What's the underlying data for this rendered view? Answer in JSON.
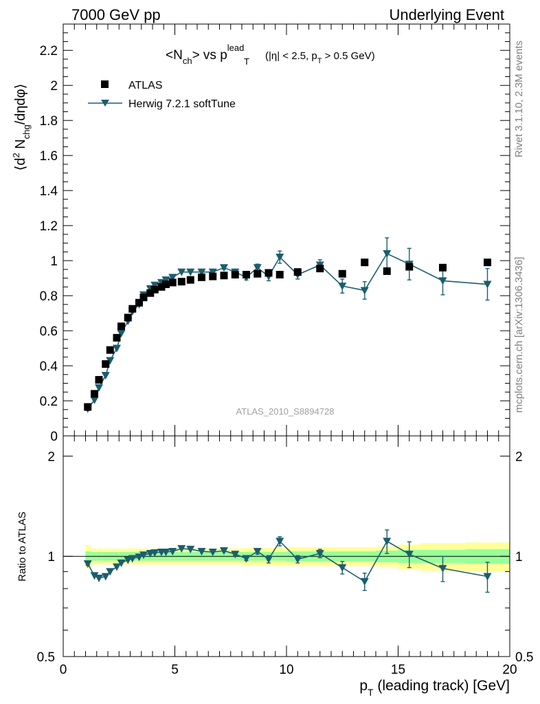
{
  "header": {
    "left": "7000 GeV pp",
    "right": "Underlying Event"
  },
  "side_labels": {
    "rivet": "Rivet 3.1.10,  2.3M events",
    "mcplots": "mcplots.cern.ch [arXiv:1306.3436]"
  },
  "colors": {
    "herwig": "#1b5e6e",
    "band_yellow": "#ffff99",
    "band_green": "#99ff99",
    "data": "#000000",
    "watermark": "#a0a0a0"
  },
  "chart_data": [
    {
      "type": "scatter",
      "panel": "main",
      "title_parts": {
        "n": "<N",
        "n_sub": "ch",
        "vs": "> vs p",
        "lead_sup": "lead",
        "t_sub": "T",
        "cut1": "(|η| < 2.5, p",
        "cut_sub": "T",
        "cut2": " > 0.5 GeV)"
      },
      "ylabel_parts": {
        "a": "⟨d",
        "sup2": "2",
        "b": " N",
        "sub_chg": "chg",
        "c": "/dηdφ⟩"
      },
      "watermark": "ATLAS_2010_S8894728",
      "xlim": [
        0,
        20
      ],
      "ylim": [
        0,
        2.35
      ],
      "x_ticks": [
        0,
        5,
        10,
        15,
        20
      ],
      "y_ticks": [
        "0",
        "0.2",
        "0.4",
        "0.6",
        "0.8",
        "1",
        "1.2",
        "1.4",
        "1.6",
        "1.8",
        "2",
        "2.2"
      ],
      "grid": false,
      "legend_position": "top-left",
      "series": [
        {
          "name": "ATLAS",
          "marker": "square",
          "x": [
            1.1,
            1.4,
            1.6,
            1.9,
            2.1,
            2.4,
            2.6,
            2.9,
            3.1,
            3.4,
            3.6,
            3.9,
            4.1,
            4.4,
            4.6,
            4.9,
            5.3,
            5.7,
            6.2,
            6.7,
            7.2,
            7.7,
            8.2,
            8.7,
            9.2,
            9.7,
            10.5,
            11.5,
            12.5,
            13.5,
            14.5,
            15.5,
            17.0,
            19.0
          ],
          "y": [
            0.165,
            0.24,
            0.32,
            0.41,
            0.49,
            0.56,
            0.625,
            0.675,
            0.725,
            0.76,
            0.79,
            0.815,
            0.835,
            0.85,
            0.865,
            0.875,
            0.88,
            0.89,
            0.905,
            0.91,
            0.915,
            0.92,
            0.92,
            0.925,
            0.93,
            0.92,
            0.935,
            0.955,
            0.925,
            0.99,
            0.94,
            0.965,
            0.96,
            0.99
          ]
        },
        {
          "name": "Herwig 7.2.1 softTune",
          "marker": "triangle-down",
          "x": [
            1.1,
            1.4,
            1.6,
            1.9,
            2.1,
            2.4,
            2.6,
            2.9,
            3.1,
            3.4,
            3.6,
            3.9,
            4.1,
            4.4,
            4.6,
            4.9,
            5.3,
            5.7,
            6.2,
            6.7,
            7.2,
            7.7,
            8.2,
            8.7,
            9.2,
            9.7,
            10.5,
            11.5,
            12.5,
            13.5,
            14.5,
            15.5,
            17.0,
            19.0
          ],
          "y": [
            0.155,
            0.205,
            0.275,
            0.345,
            0.43,
            0.5,
            0.585,
            0.655,
            0.71,
            0.75,
            0.805,
            0.84,
            0.86,
            0.875,
            0.89,
            0.905,
            0.935,
            0.935,
            0.935,
            0.935,
            0.96,
            0.935,
            0.905,
            0.96,
            0.91,
            1.02,
            0.92,
            0.975,
            0.855,
            0.83,
            1.04,
            0.98,
            0.885,
            0.865
          ],
          "yerr": [
            0.01,
            0.005,
            0.005,
            0.005,
            0.005,
            0.005,
            0.005,
            0.005,
            0.005,
            0.005,
            0.005,
            0.005,
            0.005,
            0.005,
            0.005,
            0.005,
            0.005,
            0.005,
            0.005,
            0.005,
            0.008,
            0.01,
            0.015,
            0.02,
            0.025,
            0.035,
            0.025,
            0.03,
            0.04,
            0.05,
            0.09,
            0.09,
            0.08,
            0.09
          ]
        }
      ]
    },
    {
      "type": "scatter",
      "panel": "ratio",
      "ylabel": "Ratio to ATLAS",
      "xlabel_parts": {
        "p": "p",
        "sub": "T",
        "rest": " (leading track) [GeV]"
      },
      "xlim": [
        0,
        20
      ],
      "ylim": [
        0.5,
        2.3
      ],
      "log_y": true,
      "y_ticks": [
        "0.5",
        "1",
        "2"
      ],
      "reference_line": 1,
      "series": [
        {
          "name": "Herwig 7.2.1 softTune",
          "x": [
            1.1,
            1.4,
            1.6,
            1.9,
            2.1,
            2.4,
            2.6,
            2.9,
            3.1,
            3.4,
            3.6,
            3.9,
            4.1,
            4.4,
            4.6,
            4.9,
            5.3,
            5.7,
            6.2,
            6.7,
            7.2,
            7.7,
            8.2,
            8.7,
            9.2,
            9.7,
            10.5,
            11.5,
            12.5,
            13.5,
            14.5,
            15.5,
            17.0,
            19.0
          ],
          "y": [
            0.95,
            0.875,
            0.86,
            0.87,
            0.9,
            0.93,
            0.955,
            0.975,
            0.985,
            0.995,
            1.01,
            1.02,
            1.025,
            1.03,
            1.03,
            1.035,
            1.055,
            1.05,
            1.035,
            1.03,
            1.04,
            1.015,
            0.985,
            1.035,
            0.98,
            1.11,
            0.98,
            1.02,
            0.925,
            0.84,
            1.11,
            1.015,
            0.92,
            0.87
          ],
          "yerr": [
            0.01,
            0.005,
            0.005,
            0.005,
            0.005,
            0.005,
            0.005,
            0.005,
            0.005,
            0.005,
            0.005,
            0.005,
            0.005,
            0.005,
            0.005,
            0.005,
            0.005,
            0.005,
            0.005,
            0.005,
            0.008,
            0.01,
            0.015,
            0.02,
            0.025,
            0.035,
            0.025,
            0.03,
            0.04,
            0.05,
            0.09,
            0.09,
            0.08,
            0.09
          ]
        }
      ],
      "bands": {
        "x_edges": [
          1,
          1.25,
          1.5,
          1.75,
          2,
          2.25,
          2.5,
          2.75,
          3,
          3.25,
          3.5,
          3.75,
          4,
          4.25,
          4.5,
          4.75,
          5,
          5.5,
          6,
          6.5,
          7,
          7.5,
          8,
          8.5,
          9,
          9.5,
          10,
          11,
          12,
          13,
          14,
          15,
          16,
          18,
          20
        ],
        "green_half": [
          0.035,
          0.03,
          0.03,
          0.03,
          0.03,
          0.03,
          0.03,
          0.03,
          0.03,
          0.03,
          0.03,
          0.03,
          0.03,
          0.03,
          0.03,
          0.03,
          0.03,
          0.03,
          0.03,
          0.03,
          0.03,
          0.03,
          0.03,
          0.03,
          0.03,
          0.03,
          0.035,
          0.035,
          0.035,
          0.035,
          0.04,
          0.045,
          0.045,
          0.05
        ],
        "yellow_half": [
          0.08,
          0.055,
          0.055,
          0.055,
          0.055,
          0.055,
          0.055,
          0.055,
          0.055,
          0.055,
          0.055,
          0.055,
          0.055,
          0.055,
          0.055,
          0.055,
          0.055,
          0.055,
          0.055,
          0.055,
          0.055,
          0.055,
          0.06,
          0.06,
          0.06,
          0.065,
          0.065,
          0.065,
          0.065,
          0.065,
          0.07,
          0.085,
          0.095,
          0.1
        ]
      }
    }
  ]
}
